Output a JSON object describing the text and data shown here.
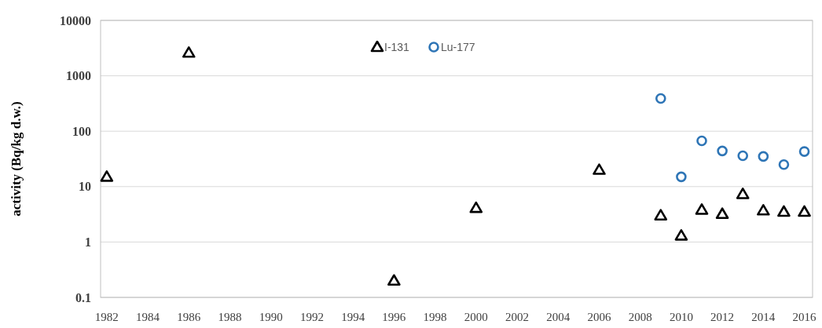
{
  "chart_data": {
    "type": "scatter",
    "ylabel": "activity (Bq/kg d.w.)",
    "log": true,
    "grid": "y",
    "legend": "top",
    "xlim": [
      1981.7,
      2016.4
    ],
    "xticks": [
      1982,
      1984,
      1986,
      1988,
      1990,
      1992,
      1994,
      1996,
      1998,
      2000,
      2002,
      2004,
      2006,
      2008,
      2010,
      2012,
      2014,
      2016
    ],
    "ylim": [
      0.1,
      10000
    ],
    "yticks": [
      0.1,
      1,
      10,
      100,
      1000,
      10000
    ],
    "series": [
      {
        "name": "I-131",
        "color": "#000000",
        "marker": "triangle",
        "x": [
          1982,
          1986,
          1996,
          2000,
          2006,
          2009,
          2010,
          2011,
          2012,
          2013,
          2014,
          2015,
          2016
        ],
        "values": [
          15,
          2600,
          0.2,
          4.1,
          20,
          3,
          1.3,
          3.8,
          3.2,
          7.3,
          3.7,
          3.5,
          3.5
        ]
      },
      {
        "name": "Lu-177",
        "color": "#2e75b6",
        "marker": "circle",
        "x": [
          2009,
          2010,
          2011,
          2012,
          2013,
          2014,
          2015,
          2016
        ],
        "values": [
          390,
          15,
          67,
          44,
          36,
          35,
          25,
          43
        ]
      }
    ]
  }
}
